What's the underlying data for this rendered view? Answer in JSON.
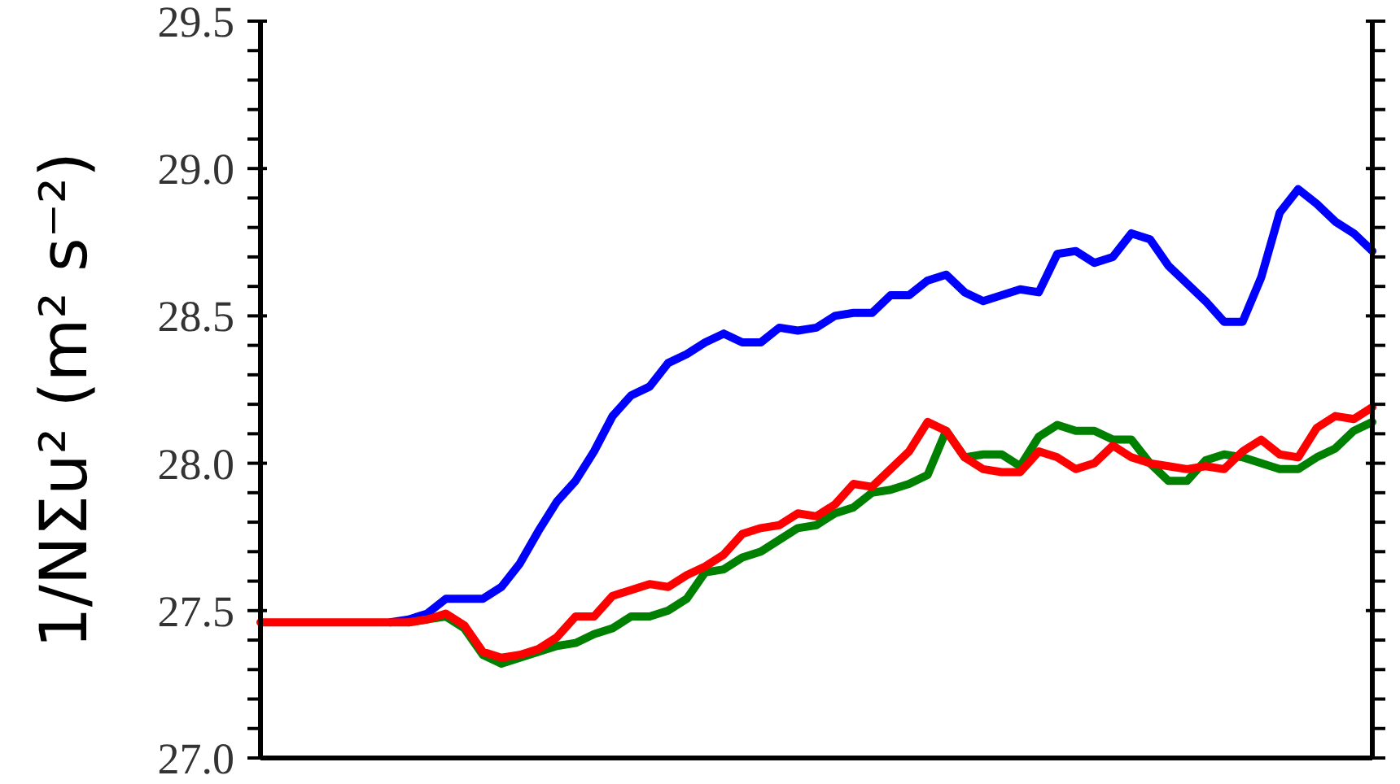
{
  "chart_data": {
    "type": "line",
    "ylabel": "1/NΣu² (m² s⁻²)",
    "categories": [
      null,
      null,
      null,
      null,
      null,
      null,
      null,
      null,
      null,
      null,
      null,
      null,
      null,
      null,
      null,
      null,
      null,
      null,
      null,
      null,
      null,
      null,
      null,
      null,
      null,
      null,
      null,
      null,
      null,
      null,
      null,
      null,
      null,
      null,
      null,
      null,
      null,
      null,
      null,
      null,
      null,
      null,
      null,
      null,
      null,
      null,
      null,
      null,
      null,
      null,
      null,
      null,
      null,
      null,
      null,
      null,
      null,
      null,
      null,
      null,
      null
    ],
    "series": [
      {
        "color": "#0000ff",
        "values": [
          null,
          null,
          null,
          null,
          null,
          null,
          null,
          27.46,
          27.47,
          27.49,
          27.54,
          27.54,
          27.54,
          27.58,
          27.66,
          27.77,
          27.87,
          27.94,
          28.04,
          28.16,
          28.23,
          28.26,
          28.34,
          28.37,
          28.41,
          28.44,
          28.41,
          28.41,
          28.46,
          28.45,
          28.46,
          28.5,
          28.51,
          28.51,
          28.57,
          28.57,
          28.62,
          28.64,
          28.58,
          28.55,
          28.57,
          28.59,
          28.58,
          28.71,
          28.72,
          28.68,
          28.7,
          28.78,
          28.76,
          28.67,
          28.61,
          28.55,
          28.48,
          28.48,
          28.63,
          28.85,
          28.93,
          28.88,
          28.82,
          28.78,
          28.72
        ]
      },
      {
        "color": "#008000",
        "values": [
          null,
          null,
          null,
          null,
          null,
          null,
          null,
          null,
          27.46,
          27.47,
          27.48,
          27.44,
          27.35,
          27.32,
          27.34,
          27.36,
          27.38,
          27.39,
          27.42,
          27.44,
          27.48,
          27.48,
          27.5,
          27.54,
          27.63,
          27.64,
          27.68,
          27.7,
          27.74,
          27.78,
          27.79,
          27.83,
          27.85,
          27.9,
          27.91,
          27.93,
          27.96,
          28.11,
          28.02,
          28.03,
          28.03,
          27.99,
          28.09,
          28.13,
          28.11,
          28.11,
          28.08,
          28.08,
          28.0,
          27.94,
          27.94,
          28.01,
          28.03,
          28.02,
          28.0,
          27.98,
          27.98,
          28.02,
          28.05,
          28.11,
          28.14
        ]
      },
      {
        "color": "#ff0000",
        "values": [
          27.46,
          27.46,
          27.46,
          27.46,
          27.46,
          27.46,
          27.46,
          27.46,
          27.46,
          27.47,
          27.49,
          27.45,
          27.36,
          27.34,
          27.35,
          27.37,
          27.41,
          27.48,
          27.48,
          27.55,
          27.57,
          27.59,
          27.58,
          27.62,
          27.65,
          27.69,
          27.76,
          27.78,
          27.79,
          27.83,
          27.82,
          27.86,
          27.93,
          27.92,
          27.98,
          28.04,
          28.14,
          28.11,
          28.02,
          27.98,
          27.97,
          27.97,
          28.04,
          28.02,
          27.98,
          28.0,
          28.06,
          28.02,
          28.0,
          27.99,
          27.98,
          27.99,
          27.98,
          28.04,
          28.08,
          28.03,
          28.02,
          28.12,
          28.16,
          28.15,
          28.19
        ]
      }
    ],
    "ylim": [
      27.0,
      29.5
    ],
    "yticks": [
      {
        "value": 27.0,
        "label": "27.0"
      },
      {
        "value": 27.1,
        "label": null
      },
      {
        "value": 27.2,
        "label": null
      },
      {
        "value": 27.3,
        "label": null
      },
      {
        "value": 27.4,
        "label": null
      },
      {
        "value": 27.5,
        "label": "27.5"
      },
      {
        "value": 27.6,
        "label": null
      },
      {
        "value": 27.7,
        "label": null
      },
      {
        "value": 27.8,
        "label": null
      },
      {
        "value": 27.9,
        "label": null
      },
      {
        "value": 28.0,
        "label": "28.0"
      },
      {
        "value": 28.1,
        "label": null
      },
      {
        "value": 28.2,
        "label": null
      },
      {
        "value": 28.3,
        "label": null
      },
      {
        "value": 28.4,
        "label": null
      },
      {
        "value": 28.5,
        "label": "28.5"
      },
      {
        "value": 28.6,
        "label": null
      },
      {
        "value": 28.7,
        "label": null
      },
      {
        "value": 28.8,
        "label": null
      },
      {
        "value": 28.9,
        "label": null
      },
      {
        "value": 29.0,
        "label": "29.0"
      },
      {
        "value": 29.1,
        "label": null
      },
      {
        "value": 29.2,
        "label": null
      },
      {
        "value": 29.3,
        "label": null
      },
      {
        "value": 29.4,
        "label": null
      },
      {
        "value": 29.5,
        "label": "29.5"
      }
    ],
    "tick_labels": "y",
    "marker": "none",
    "line_style": "solid"
  }
}
